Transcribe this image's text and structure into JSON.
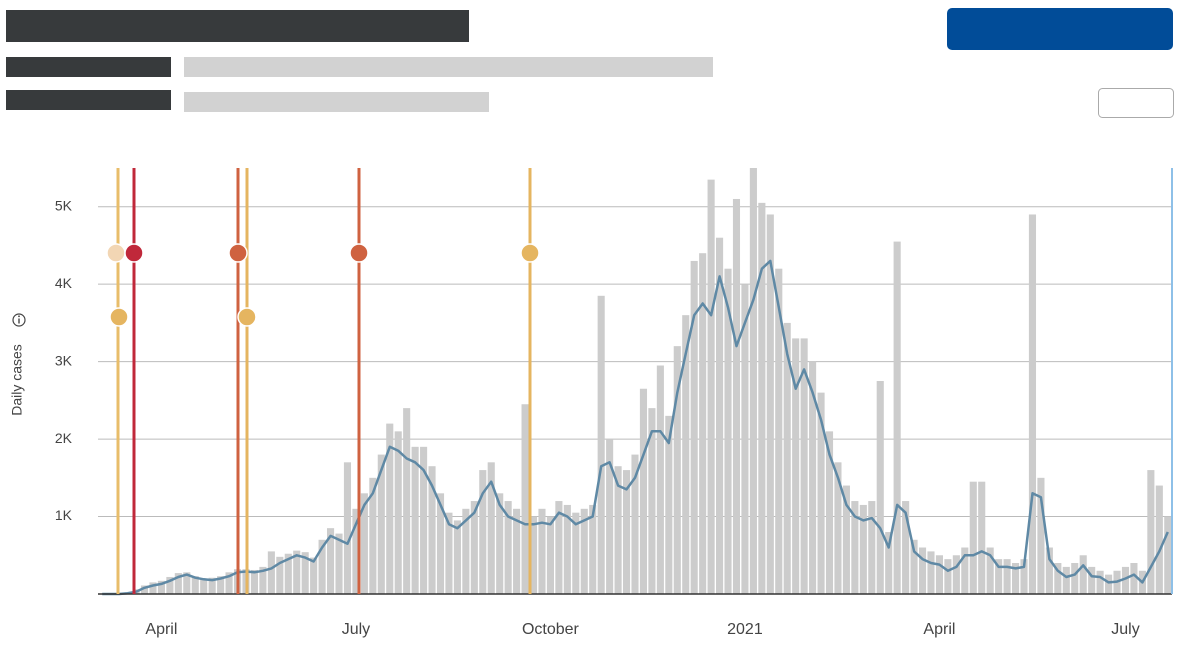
{
  "chart_data": {
    "type": "combo",
    "y_label": "Daily cases",
    "categories": [
      null,
      null,
      null,
      null,
      null,
      null,
      null,
      "April",
      null,
      null,
      null,
      null,
      null,
      null,
      null,
      null,
      null,
      null,
      null,
      null,
      null,
      null,
      null,
      null,
      null,
      null,
      null,
      null,
      null,
      null,
      "July",
      null,
      null,
      null,
      null,
      null,
      null,
      null,
      null,
      null,
      null,
      null,
      null,
      null,
      null,
      null,
      null,
      null,
      null,
      null,
      null,
      null,
      null,
      "October",
      null,
      null,
      null,
      null,
      null,
      null,
      null,
      null,
      null,
      null,
      null,
      null,
      null,
      null,
      null,
      null,
      null,
      null,
      null,
      null,
      null,
      null,
      "2021",
      null,
      null,
      null,
      null,
      null,
      null,
      null,
      null,
      null,
      null,
      null,
      null,
      null,
      null,
      null,
      null,
      null,
      null,
      null,
      null,
      null,
      null,
      "April",
      null,
      null,
      null,
      null,
      null,
      null,
      null,
      null,
      null,
      null,
      null,
      null,
      null,
      null,
      null,
      null,
      null,
      null,
      null,
      null,
      null,
      "July",
      null,
      null,
      null,
      null,
      null
    ],
    "series": [
      {
        "type": "bar",
        "color": "#cccccc",
        "values": [
          0,
          0,
          0,
          20,
          60,
          110,
          150,
          170,
          220,
          270,
          280,
          230,
          200,
          210,
          230,
          280,
          320,
          320,
          310,
          350,
          550,
          480,
          520,
          560,
          540,
          470,
          700,
          850,
          780,
          1700,
          1100,
          1300,
          1500,
          1800,
          2200,
          2100,
          2400,
          1900,
          1900,
          1650,
          1300,
          1050,
          950,
          1100,
          1200,
          1600,
          1700,
          1300,
          1200,
          1100,
          2450,
          1000,
          1100,
          1000,
          1200,
          1150,
          1050,
          1100,
          1150,
          3850,
          2000,
          1650,
          1600,
          1800,
          2650,
          2400,
          2950,
          2300,
          3200,
          3600,
          4300,
          4400,
          5350,
          4600,
          4200,
          5100,
          4000,
          5500,
          5050,
          4900,
          4200,
          3500,
          3300,
          3300,
          3000,
          2600,
          2100,
          1700,
          1400,
          1200,
          1150,
          1200,
          2750,
          800,
          4550,
          1200,
          700,
          600,
          550,
          500,
          450,
          500,
          600,
          1450,
          1450,
          600,
          450,
          450,
          400,
          450,
          4900,
          1500,
          600,
          400,
          350,
          400,
          500,
          350,
          300,
          250,
          300,
          350,
          400,
          300,
          1600,
          1400,
          1000
        ]
      },
      {
        "type": "line",
        "color": "#5f89a5",
        "values": [
          0,
          0,
          0,
          10,
          30,
          80,
          110,
          130,
          170,
          220,
          250,
          210,
          190,
          180,
          200,
          230,
          280,
          290,
          280,
          300,
          330,
          400,
          450,
          500,
          470,
          420,
          600,
          750,
          700,
          650,
          900,
          1150,
          1300,
          1600,
          1900,
          1850,
          1750,
          1700,
          1600,
          1400,
          1150,
          900,
          850,
          950,
          1050,
          1300,
          1450,
          1150,
          1000,
          950,
          900,
          900,
          920,
          900,
          1050,
          1000,
          900,
          950,
          1000,
          1650,
          1700,
          1400,
          1350,
          1500,
          1800,
          2100,
          2100,
          1950,
          2600,
          3100,
          3600,
          3750,
          3600,
          4100,
          3700,
          3200,
          3500,
          3800,
          4200,
          4300,
          3700,
          3100,
          2650,
          2900,
          2600,
          2250,
          1800,
          1500,
          1150,
          1000,
          950,
          980,
          850,
          600,
          1150,
          1050,
          550,
          450,
          400,
          380,
          300,
          350,
          500,
          500,
          550,
          500,
          350,
          350,
          330,
          350,
          1300,
          1250,
          450,
          300,
          220,
          250,
          370,
          230,
          220,
          150,
          160,
          200,
          250,
          150,
          350,
          550,
          800
        ]
      }
    ],
    "ylim": [
      0,
      5500
    ],
    "yticks": [
      {
        "value": 1000,
        "label": "1K"
      },
      {
        "value": 2000,
        "label": "2K"
      },
      {
        "value": 3000,
        "label": "3K"
      },
      {
        "value": 4000,
        "label": "4K"
      },
      {
        "value": 5000,
        "label": "5K"
      }
    ],
    "grid": true
  }
}
